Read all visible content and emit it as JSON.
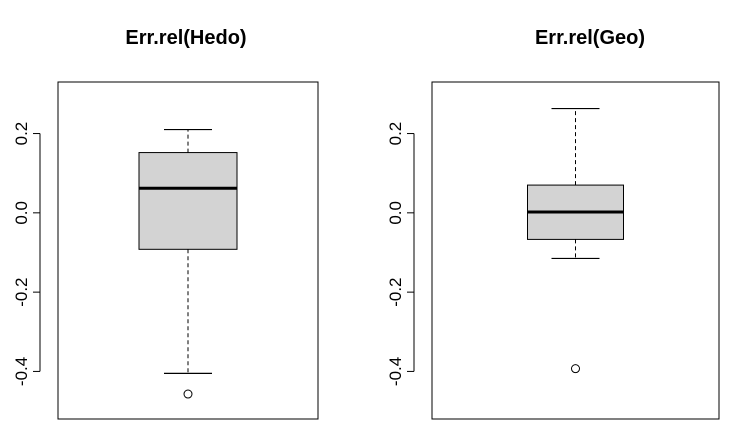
{
  "chart_data": [
    {
      "type": "boxplot",
      "title": "Err.rel(Hedo)",
      "xlabel": "",
      "ylabel": "",
      "ylim": [
        -0.52,
        0.33
      ],
      "yticks": [
        0.2,
        0.0,
        -0.2,
        -0.4
      ],
      "ytick_labels": [
        "0.2",
        "0.0",
        "-0.2",
        "-0.4"
      ],
      "box": {
        "whisker_low": -0.405,
        "q1": -0.092,
        "median": 0.062,
        "q3": 0.152,
        "whisker_high": 0.21
      },
      "outliers": [
        -0.457
      ],
      "box_color": "#d3d3d3"
    },
    {
      "type": "boxplot",
      "title": "Err.rel(Geo)",
      "xlabel": "",
      "ylabel": "",
      "ylim": [
        -0.52,
        0.33
      ],
      "yticks": [
        0.2,
        0.0,
        -0.2,
        -0.4
      ],
      "ytick_labels": [
        "0.2",
        "0.0",
        "-0.2",
        "-0.4"
      ],
      "box": {
        "whisker_low": -0.115,
        "q1": -0.067,
        "median": 0.002,
        "q3": 0.07,
        "whisker_high": 0.263
      },
      "outliers": [
        -0.393
      ],
      "box_color": "#d3d3d3"
    }
  ]
}
